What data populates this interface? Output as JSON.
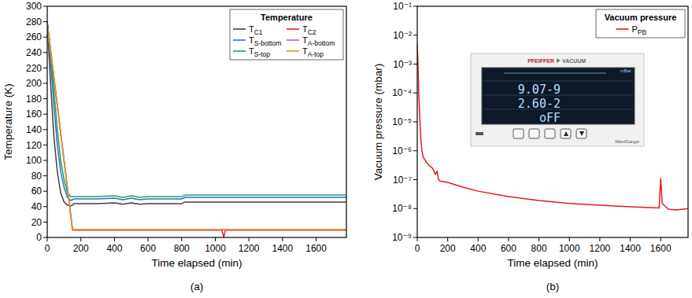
{
  "chart_data": [
    {
      "type": "line",
      "caption": "(a)",
      "x_label": "Time elapsed (min)",
      "y_label": "Temperature (K)",
      "legend_title": "Temperature",
      "legend": "upper right",
      "grid": false,
      "xlim": [
        0,
        1780
      ],
      "xticks": [
        0,
        200,
        400,
        600,
        800,
        1000,
        1200,
        1400,
        1600
      ],
      "ylim": [
        0,
        300
      ],
      "yticks": [
        0,
        20,
        40,
        60,
        80,
        100,
        120,
        140,
        160,
        180,
        200,
        220,
        240,
        260,
        280,
        300
      ],
      "x": [
        0,
        20,
        40,
        60,
        80,
        100,
        120,
        140,
        150,
        160,
        200,
        300,
        400,
        450,
        500,
        550,
        600,
        700,
        800,
        820,
        1000,
        1040,
        1050,
        1060,
        1200,
        1400,
        1600,
        1780
      ],
      "series": [
        {
          "name": "TC1",
          "color": "#404040",
          "values": [
            280,
            200,
            130,
            85,
            58,
            46,
            42,
            41,
            42,
            44,
            44,
            44,
            45,
            43,
            45,
            43,
            44,
            44,
            44,
            46,
            46,
            46,
            46,
            46,
            46,
            46,
            46,
            46
          ]
        },
        {
          "name": "TC2",
          "color": "#e8211c",
          "values": [
            280,
            244,
            208,
            172,
            136,
            100,
            64,
            28,
            10,
            9.5,
            9.5,
            9.5,
            9.5,
            9.5,
            9.5,
            9.5,
            9.5,
            9.5,
            9.5,
            9.5,
            9.5,
            9.5,
            0,
            9.5,
            9.5,
            9.5,
            9.5,
            9.5
          ]
        },
        {
          "name": "TS-bottom",
          "color": "#2f6ec0",
          "values": [
            280,
            230,
            170,
            120,
            85,
            65,
            52,
            48,
            49,
            50,
            50,
            50,
            51,
            49,
            51,
            49,
            50,
            50,
            50,
            52,
            52,
            52,
            52,
            52,
            52,
            52,
            52,
            52
          ]
        },
        {
          "name": "TA-bottom",
          "color": "#b45fc8",
          "values": [
            270,
            238,
            204,
            170,
            135,
            100,
            65,
            30,
            11,
            10,
            10,
            10,
            10,
            10,
            10,
            10,
            10,
            10,
            10,
            10,
            10,
            10,
            10,
            10,
            10,
            10,
            10,
            10
          ]
        },
        {
          "name": "TS-top",
          "color": "#1fa070",
          "values": [
            280,
            240,
            190,
            140,
            100,
            75,
            58,
            53,
            53,
            53,
            53,
            53,
            54,
            52,
            54,
            52,
            53,
            53,
            53,
            55,
            55,
            55,
            55,
            55,
            55,
            55,
            55,
            55
          ]
        },
        {
          "name": "TA-top",
          "color": "#d4a020",
          "values": [
            278,
            242,
            207,
            172,
            136,
            100,
            64,
            29,
            11,
            10.5,
            10.5,
            10.5,
            10.5,
            10.5,
            10.5,
            10.5,
            10.5,
            10.5,
            10.5,
            10.5,
            10.5,
            10.5,
            10.5,
            10.5,
            10.5,
            10.5,
            10.5,
            10.5
          ]
        }
      ]
    },
    {
      "type": "line",
      "caption": "(b)",
      "x_label": "Time elapsed (min)",
      "y_label": "Vacuum pressure (mbar)",
      "legend_title": "Vacuum pressure",
      "legend": "upper right",
      "grid": false,
      "log": "y",
      "xlim": [
        0,
        1780
      ],
      "xticks": [
        0,
        200,
        400,
        600,
        800,
        1000,
        1200,
        1400,
        1600
      ],
      "ylim": [
        1e-09,
        0.1
      ],
      "yticks": [
        {
          "value": 1e-09,
          "label": "10⁻⁹"
        },
        {
          "value": 1e-08,
          "label": "10⁻⁸"
        },
        {
          "value": 1e-07,
          "label": "10⁻⁷"
        },
        {
          "value": 1e-06,
          "label": "10⁻⁶"
        },
        {
          "value": 1e-05,
          "label": "10⁻⁵"
        },
        {
          "value": 0.0001,
          "label": "10⁻⁴"
        },
        {
          "value": 0.001,
          "label": "10⁻³"
        },
        {
          "value": 0.01,
          "label": "10⁻²"
        },
        {
          "value": 0.1,
          "label": "10⁻¹"
        }
      ],
      "x": [
        0,
        5,
        10,
        20,
        30,
        40,
        60,
        80,
        100,
        120,
        130,
        140,
        150,
        200,
        300,
        400,
        600,
        800,
        1000,
        1200,
        1400,
        1590,
        1600,
        1610,
        1650,
        1700,
        1780
      ],
      "series": [
        {
          "name": "PPB",
          "color": "#e41a1c",
          "values": [
            0.005,
            0.001,
            0.0001,
            5e-06,
            1e-06,
            6e-07,
            4e-07,
            3e-07,
            2.5e-07,
            1.5e-07,
            2e-07,
            1e-07,
            9e-08,
            8e-08,
            5.5e-08,
            4e-08,
            2.6e-08,
            1.9e-08,
            1.5e-08,
            1.3e-08,
            1.15e-08,
            1.05e-08,
            1.1e-07,
            1.5e-08,
            9.5e-09,
            9e-09,
            1e-08
          ]
        }
      ],
      "annotations": [
        "PFEIFFER",
        "VACUUM",
        "mBar",
        "9.07-9",
        "2.60-2",
        "oFF",
        "MaxiGauge"
      ]
    }
  ]
}
